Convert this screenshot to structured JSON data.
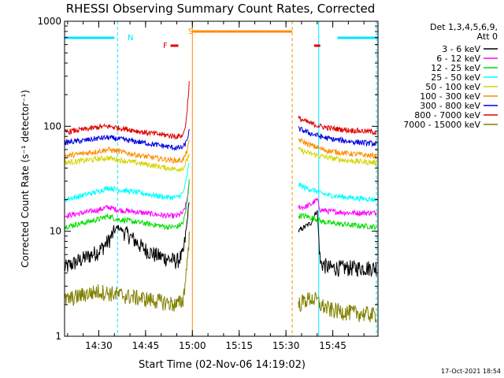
{
  "chart_data": {
    "type": "line",
    "title": "RHESSI Observing Summary Count Rates, Corrected",
    "xlabel": "Start Time (02-Nov-06 14:19:02)",
    "ylabel": "Corrected Count Rate (s⁻¹ detector⁻¹)",
    "y_scale": "log",
    "ylim": [
      1,
      1000
    ],
    "xlim": [
      "14:19:02",
      "15:59:30"
    ],
    "x_ticks": [
      "14:30",
      "14:45",
      "15:00",
      "15:15",
      "15:30",
      "15:45"
    ],
    "y_ticks": [
      "1",
      "10",
      "100",
      "1000"
    ],
    "footer_date": "17-Oct-2021 18:54",
    "legend": {
      "header": [
        "Det 1,3,4,5,6,9,",
        "Att 0"
      ],
      "position": "right"
    },
    "annotations": [
      {
        "label": "N",
        "color": "#00e5ff"
      },
      {
        "label": "F",
        "color": "#e00000"
      },
      {
        "label": "S",
        "color": "#ff8c00"
      }
    ],
    "night_bars": [
      [
        "14:19:02",
        "14:35:00"
      ],
      [
        "15:46:30",
        "15:59:30"
      ]
    ],
    "flare_bars": [
      [
        "14:53:00",
        "14:55:30"
      ],
      [
        "15:39:00",
        "15:41:00"
      ]
    ],
    "saa_bar": [
      "15:00:00",
      "15:32:00"
    ],
    "event_lines": [
      {
        "time": "14:36:00",
        "color": "#00e5ff",
        "dash": true
      },
      {
        "time": "15:00:00",
        "color": "#ff8c00",
        "dash": false
      },
      {
        "time": "15:32:00",
        "color": "#ff8c00",
        "dash": true
      },
      {
        "time": "15:40:30",
        "color": "#00e5ff",
        "dash": false
      },
      {
        "time": "15:59:00",
        "color": "#00e5ff",
        "dash": true
      }
    ],
    "data_gap": [
      "15:00:00",
      "15:34:00"
    ],
    "series": [
      {
        "name": "3 - 6 keV",
        "color": "#000000",
        "before": {
          "x": [
            "14:19",
            "14:25",
            "14:30",
            "14:33",
            "14:36",
            "14:40",
            "14:44",
            "14:48",
            "14:52",
            "14:55",
            "14:57",
            "14:58",
            "14:59"
          ],
          "y": [
            4.5,
            5.5,
            6.5,
            8,
            11,
            9,
            7,
            6,
            5.5,
            5.2,
            6,
            10,
            20
          ]
        },
        "after": {
          "x": [
            "15:34",
            "15:36",
            "15:38",
            "15:40",
            "15:41",
            "15:44",
            "15:50",
            "15:59"
          ],
          "y": [
            10,
            11,
            12,
            16,
            5,
            4.5,
            4.5,
            4.5
          ]
        }
      },
      {
        "name": "6 - 12 keV",
        "color": "#ff00ff",
        "before": {
          "x": [
            "14:19",
            "14:25",
            "14:30",
            "14:33",
            "14:36",
            "14:40",
            "14:44",
            "14:48",
            "14:52",
            "14:55",
            "14:57",
            "14:58",
            "14:59"
          ],
          "y": [
            14,
            15,
            16,
            17,
            16,
            15.5,
            15,
            14.5,
            14,
            14,
            15,
            18,
            28
          ]
        },
        "after": {
          "x": [
            "15:34",
            "15:36",
            "15:38",
            "15:40",
            "15:41",
            "15:44",
            "15:50",
            "15:59"
          ],
          "y": [
            17,
            17,
            18,
            20,
            16,
            15.5,
            15,
            15
          ]
        }
      },
      {
        "name": "12 - 25 keV",
        "color": "#00dd00",
        "before": {
          "x": [
            "14:19",
            "14:25",
            "14:30",
            "14:33",
            "14:36",
            "14:40",
            "14:44",
            "14:48",
            "14:52",
            "14:55",
            "14:57",
            "14:58",
            "14:59"
          ],
          "y": [
            11,
            12,
            13,
            14,
            13,
            12.5,
            12,
            11.5,
            11,
            11,
            12,
            16,
            30
          ]
        },
        "after": {
          "x": [
            "15:34",
            "15:36",
            "15:38",
            "15:40",
            "15:41",
            "15:44",
            "15:50",
            "15:59"
          ],
          "y": [
            14,
            14,
            13.5,
            13,
            12.5,
            12,
            11.5,
            11
          ]
        }
      },
      {
        "name": "25 - 50 keV",
        "color": "#00ffff",
        "before": {
          "x": [
            "14:19",
            "14:25",
            "14:30",
            "14:33",
            "14:36",
            "14:40",
            "14:44",
            "14:48",
            "14:52",
            "14:55",
            "14:57",
            "14:58",
            "14:59"
          ],
          "y": [
            20,
            22,
            24,
            26,
            25,
            24,
            23,
            22,
            21,
            21,
            23,
            30,
            45
          ]
        },
        "after": {
          "x": [
            "15:34",
            "15:36",
            "15:38",
            "15:40",
            "15:41",
            "15:44",
            "15:50",
            "15:59"
          ],
          "y": [
            28,
            26,
            25,
            24,
            23,
            22,
            21,
            20
          ]
        }
      },
      {
        "name": "50 - 100 keV",
        "color": "#d4d400",
        "before": {
          "x": [
            "14:19",
            "14:25",
            "14:30",
            "14:33",
            "14:36",
            "14:40",
            "14:44",
            "14:48",
            "14:52",
            "14:55",
            "14:57",
            "14:58",
            "14:59"
          ],
          "y": [
            45,
            47,
            49,
            50,
            48,
            46,
            44,
            42,
            40,
            39,
            40,
            45,
            55
          ]
        },
        "after": {
          "x": [
            "15:34",
            "15:36",
            "15:38",
            "15:40",
            "15:41",
            "15:44",
            "15:50",
            "15:59"
          ],
          "y": [
            60,
            57,
            55,
            53,
            52,
            50,
            47,
            45
          ]
        }
      },
      {
        "name": "100 - 300 keV",
        "color": "#ff8c00",
        "before": {
          "x": [
            "14:19",
            "14:25",
            "14:30",
            "14:33",
            "14:36",
            "14:40",
            "14:44",
            "14:48",
            "14:52",
            "14:55",
            "14:57",
            "14:58",
            "14:59"
          ],
          "y": [
            52,
            55,
            58,
            60,
            58,
            55,
            52,
            50,
            48,
            47,
            48,
            55,
            70
          ]
        },
        "after": {
          "x": [
            "15:34",
            "15:36",
            "15:38",
            "15:40",
            "15:41",
            "15:44",
            "15:50",
            "15:59"
          ],
          "y": [
            75,
            70,
            66,
            63,
            61,
            58,
            55,
            52
          ]
        }
      },
      {
        "name": "300 - 800 keV",
        "color": "#0000e0",
        "before": {
          "x": [
            "14:19",
            "14:25",
            "14:30",
            "14:33",
            "14:36",
            "14:40",
            "14:44",
            "14:48",
            "14:52",
            "14:55",
            "14:57",
            "14:58",
            "14:59"
          ],
          "y": [
            70,
            73,
            77,
            78,
            76,
            73,
            70,
            67,
            64,
            62,
            63,
            70,
            90
          ]
        },
        "after": {
          "x": [
            "15:34",
            "15:36",
            "15:38",
            "15:40",
            "15:41",
            "15:44",
            "15:50",
            "15:59"
          ],
          "y": [
            95,
            90,
            85,
            82,
            80,
            76,
            72,
            68
          ]
        }
      },
      {
        "name": "800 - 7000 keV",
        "color": "#e00000",
        "before": {
          "x": [
            "14:19",
            "14:25",
            "14:30",
            "14:33",
            "14:36",
            "14:40",
            "14:44",
            "14:48",
            "14:52",
            "14:55",
            "14:57",
            "14:58",
            "14:59"
          ],
          "y": [
            88,
            93,
            98,
            100,
            97,
            93,
            88,
            85,
            82,
            80,
            82,
            110,
            260
          ]
        },
        "after": {
          "x": [
            "15:34",
            "15:36",
            "15:38",
            "15:40",
            "15:41",
            "15:44",
            "15:50",
            "15:59"
          ],
          "y": [
            120,
            112,
            106,
            102,
            100,
            96,
            92,
            88
          ]
        }
      },
      {
        "name": "7000 - 15000 keV",
        "color": "#808000",
        "before": {
          "x": [
            "14:19",
            "14:25",
            "14:30",
            "14:33",
            "14:36",
            "14:40",
            "14:44",
            "14:48",
            "14:52",
            "14:55",
            "14:57",
            "14:58",
            "14:59"
          ],
          "y": [
            2.2,
            2.5,
            2.7,
            2.6,
            2.5,
            2.4,
            2.3,
            2.2,
            2.1,
            2,
            2.2,
            4,
            9
          ]
        },
        "after": {
          "x": [
            "15:34",
            "15:36",
            "15:38",
            "15:40",
            "15:41",
            "15:44",
            "15:50",
            "15:59"
          ],
          "y": [
            2,
            2.2,
            2.3,
            2.2,
            2,
            1.8,
            1.7,
            1.6
          ]
        }
      }
    ]
  }
}
